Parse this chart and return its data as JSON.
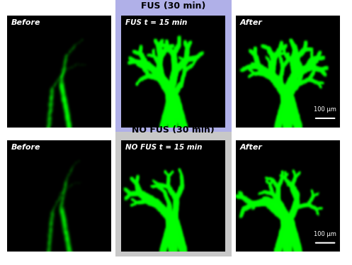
{
  "figsize": [
    4.97,
    3.74
  ],
  "dpi": 100,
  "rows": 2,
  "cols": 3,
  "row_labels": [
    "NO FUS (30 min)",
    "FUS (30 min)"
  ],
  "col_labels": [
    "Before",
    "",
    "After"
  ],
  "mid_labels": [
    "NO FUS t = 15 min",
    "FUS t = 15 min"
  ],
  "highlight_colors": [
    "#c8c8c8",
    "#b0b0e8"
  ],
  "bg_color": "#ffffff",
  "scale_bar_text": "100 μm",
  "seed": 42
}
